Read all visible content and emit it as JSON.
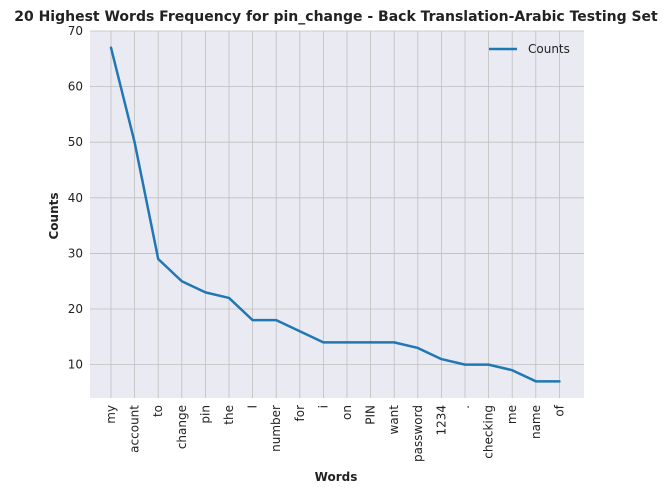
{
  "chart_data": {
    "type": "line",
    "title": "20 Highest Words Frequency for pin_change - Back Translation-Arabic Testing Set",
    "xlabel": "Words",
    "ylabel": "Counts",
    "categories": [
      "my",
      "account",
      "to",
      "change",
      "pin",
      "the",
      "I",
      "number",
      "for",
      "i",
      "on",
      "PIN",
      "want",
      "password",
      "1234",
      ".",
      "checking",
      "me",
      "name",
      "of"
    ],
    "series": [
      {
        "name": "Counts",
        "values": [
          67,
          50,
          29,
          25,
          23,
          22,
          18,
          18,
          16,
          14,
          14,
          14,
          14,
          13,
          11,
          10,
          10,
          9,
          7,
          7
        ],
        "color": "#1f77b4"
      }
    ],
    "ylim": [
      4.0,
      70
    ],
    "yticks": [
      10,
      20,
      30,
      40,
      50,
      60,
      70
    ],
    "grid": true,
    "legend_position": "top-right",
    "background_color": "#eaeaf2",
    "grid_color": "#bfbfbf"
  }
}
